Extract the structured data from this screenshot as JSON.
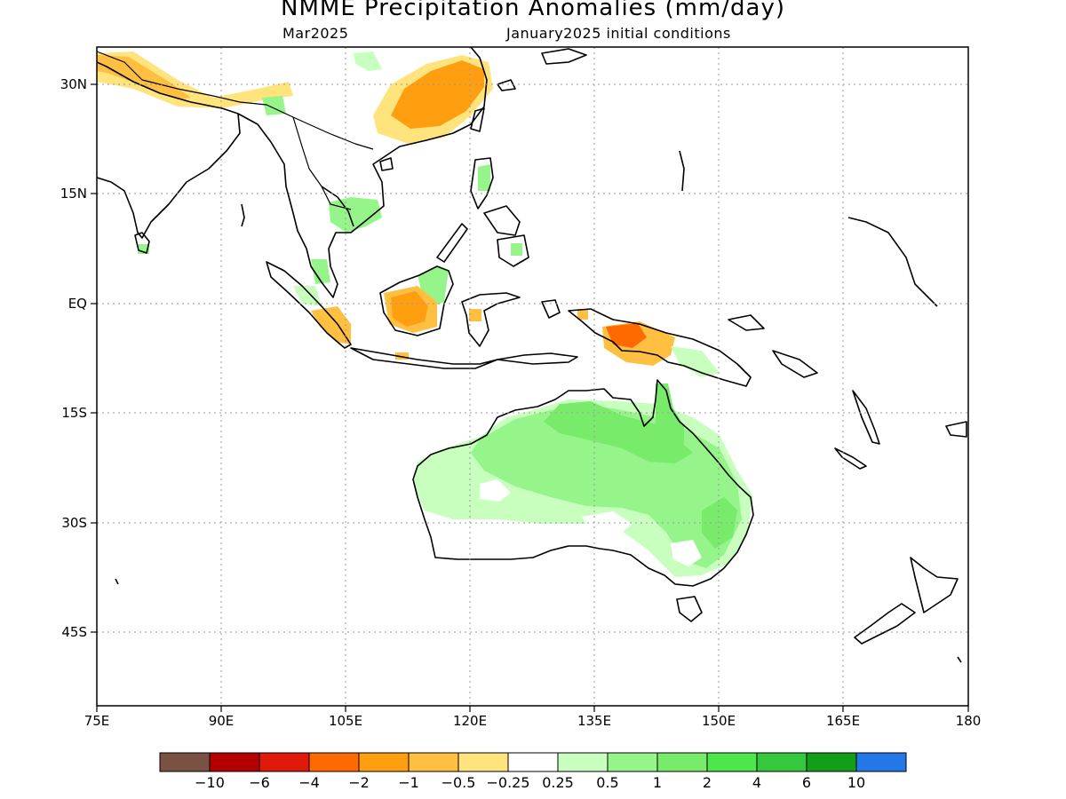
{
  "title": "NMME Precipitation Anomalies (mm/day)",
  "valid_month": "Mar2025",
  "initial_conditions": "January2025 initial conditions",
  "lat_labels": [
    "30N",
    "15N",
    "EQ",
    "15S",
    "30S",
    "45S"
  ],
  "lon_labels": [
    "75E",
    "90E",
    "105E",
    "120E",
    "135E",
    "150E",
    "165E",
    "180"
  ],
  "colorbar": {
    "colors": [
      "#7a5243",
      "#b30000",
      "#e01a0a",
      "#ff6a00",
      "#ff9f10",
      "#ffbf40",
      "#ffe37d",
      "#ffffff",
      "#c8ffbf",
      "#96f58a",
      "#78eb6a",
      "#4fe54c",
      "#36c83c",
      "#139e19",
      "#2377e6"
    ],
    "labels": [
      "−10",
      "−6",
      "−4",
      "−2",
      "−1",
      "−0.5",
      "−0.25",
      "0.25",
      "0.5",
      "1",
      "2",
      "4",
      "6",
      "10"
    ]
  },
  "map": {
    "lon_range": [
      75,
      180
    ],
    "lat_range": [
      -55,
      35
    ],
    "grid": "dotted"
  }
}
